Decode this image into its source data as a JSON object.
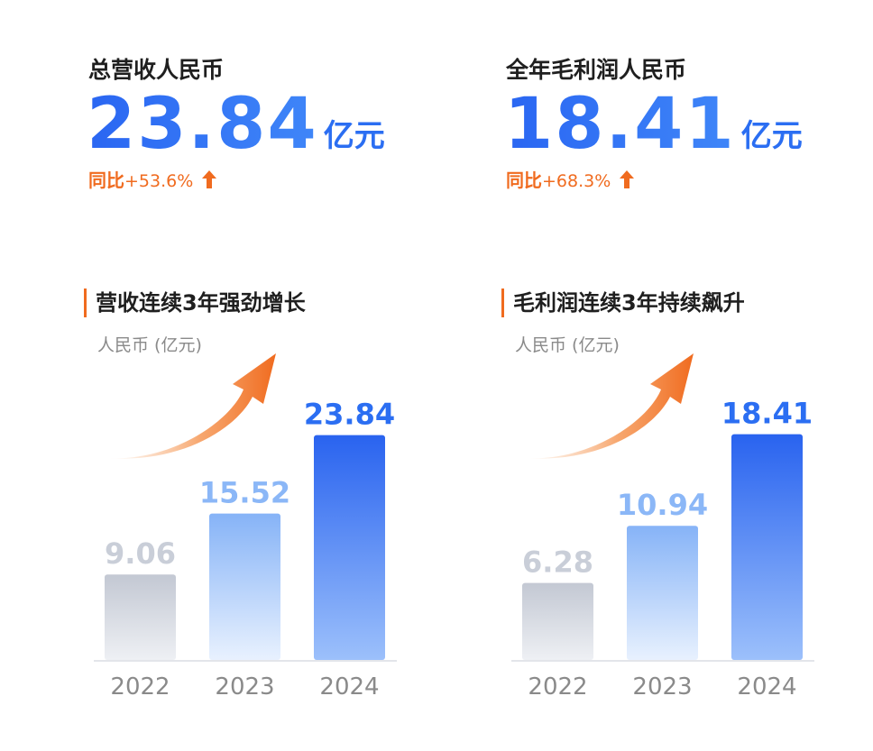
{
  "panels": [
    {
      "kpi": {
        "label": "总营收人民币",
        "value": "23.84",
        "unit": "亿元",
        "yoy_label": "同比",
        "yoy_value": "+53.6%"
      },
      "section_title": "营收连续3年强劲增长",
      "unit_label": "人民币 (亿元)"
    },
    {
      "kpi": {
        "label": "全年毛利润人民币",
        "value": "18.41",
        "unit": "亿元",
        "yoy_label": "同比",
        "yoy_value": "+68.3%"
      },
      "section_title": "毛利润连续3年持续飙升",
      "unit_label": "人民币 (亿元)"
    }
  ],
  "colors": {
    "accent_blue": "#2b6ef2",
    "accent_orange": "#f06b1f",
    "bar_2022": "#c9ced8",
    "bar_2023": "#8bb7f7",
    "bar_2024": "#2f6ff0"
  },
  "chart_data": [
    {
      "type": "bar",
      "title": "营收连续3年强劲增长",
      "ylabel": "人民币 (亿元)",
      "categories": [
        "2022",
        "2023",
        "2024"
      ],
      "values": [
        9.06,
        15.52,
        23.84
      ],
      "value_labels": [
        "9.06",
        "15.52",
        "23.84"
      ],
      "ylim": [
        0,
        26
      ]
    },
    {
      "type": "bar",
      "title": "毛利润连续3年持续飙升",
      "ylabel": "人民币 (亿元)",
      "categories": [
        "2022",
        "2023",
        "2024"
      ],
      "values": [
        6.28,
        10.94,
        18.41
      ],
      "value_labels": [
        "6.28",
        "10.94",
        "18.41"
      ],
      "ylim": [
        0,
        20
      ]
    }
  ]
}
